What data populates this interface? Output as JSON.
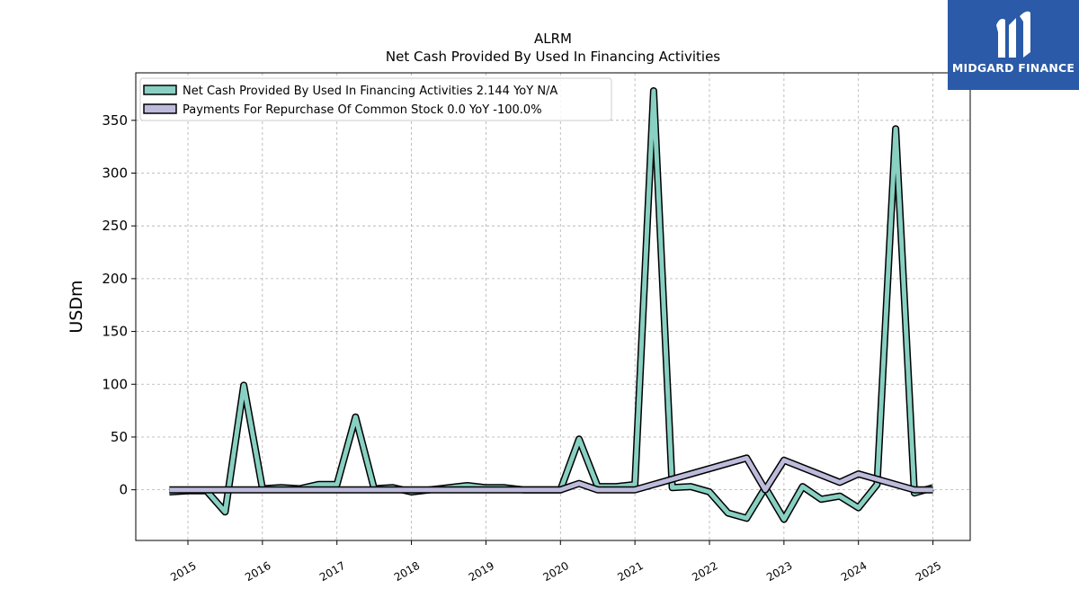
{
  "chart_data": {
    "type": "line",
    "title": "ALRM",
    "subtitle": "Net Cash Provided By Used In Financing Activities",
    "ylabel": "USDm",
    "xlabel": "",
    "ylim": [
      -48,
      395
    ],
    "xlim": [
      2014.3,
      2025.5
    ],
    "yticks": [
      0,
      50,
      100,
      150,
      200,
      250,
      300,
      350
    ],
    "xticks": [
      2015,
      2016,
      2017,
      2018,
      2019,
      2020,
      2021,
      2022,
      2023,
      2024,
      2025
    ],
    "grid": true,
    "legend_position": "upper-left",
    "series": [
      {
        "name": "Net Cash Provided By Used In Financing Activities  2.144 YoY N/A",
        "color": "#88d0c2",
        "x": [
          2014.75,
          2015.0,
          2015.25,
          2015.5,
          2015.75,
          2016.0,
          2016.25,
          2016.5,
          2016.75,
          2017.0,
          2017.25,
          2017.5,
          2017.75,
          2018.0,
          2018.25,
          2018.5,
          2018.75,
          2019.0,
          2019.25,
          2019.5,
          2019.75,
          2020.0,
          2020.25,
          2020.5,
          2020.75,
          2021.0,
          2021.25,
          2021.5,
          2021.75,
          2022.0,
          2022.25,
          2022.5,
          2022.75,
          2023.0,
          2023.25,
          2023.5,
          2023.75,
          2024.0,
          2024.25,
          2024.5,
          2024.75,
          2025.0
        ],
        "y": [
          -2,
          -1,
          -1,
          -21,
          99,
          1,
          2,
          1,
          5,
          5,
          69,
          1,
          2,
          -2,
          0,
          2,
          4,
          2,
          2,
          0,
          0,
          0,
          48,
          3,
          3,
          5,
          378,
          2,
          3,
          -2,
          -22,
          -27,
          2,
          -28,
          3,
          -9,
          -6,
          -17,
          5,
          342,
          -3,
          2
        ]
      },
      {
        "name": "Payments For Repurchase Of Common Stock  0.0 YoY -100.0%",
        "color": "#bdbbdb",
        "x": [
          2014.75,
          2015.0,
          2015.25,
          2015.5,
          2015.75,
          2016.0,
          2016.25,
          2016.5,
          2016.75,
          2017.0,
          2017.25,
          2017.5,
          2017.75,
          2018.0,
          2018.25,
          2018.5,
          2018.75,
          2019.0,
          2019.25,
          2019.5,
          2019.75,
          2020.0,
          2020.25,
          2020.5,
          2020.75,
          2021.0,
          2021.5,
          2022.5,
          2022.75,
          2023.0,
          2023.75,
          2024.0,
          2024.75,
          2025.0
        ],
        "y": [
          0,
          0,
          0,
          0,
          0,
          0,
          0,
          0,
          0,
          0,
          0,
          0,
          0,
          0,
          0,
          0,
          0,
          0,
          0,
          0,
          0,
          0,
          6,
          0,
          0,
          0,
          10,
          30,
          0,
          28,
          7,
          15,
          0,
          0
        ]
      }
    ]
  },
  "logo": {
    "text": "MIDGARD FINANCE",
    "bg": "#2a5aa8"
  }
}
